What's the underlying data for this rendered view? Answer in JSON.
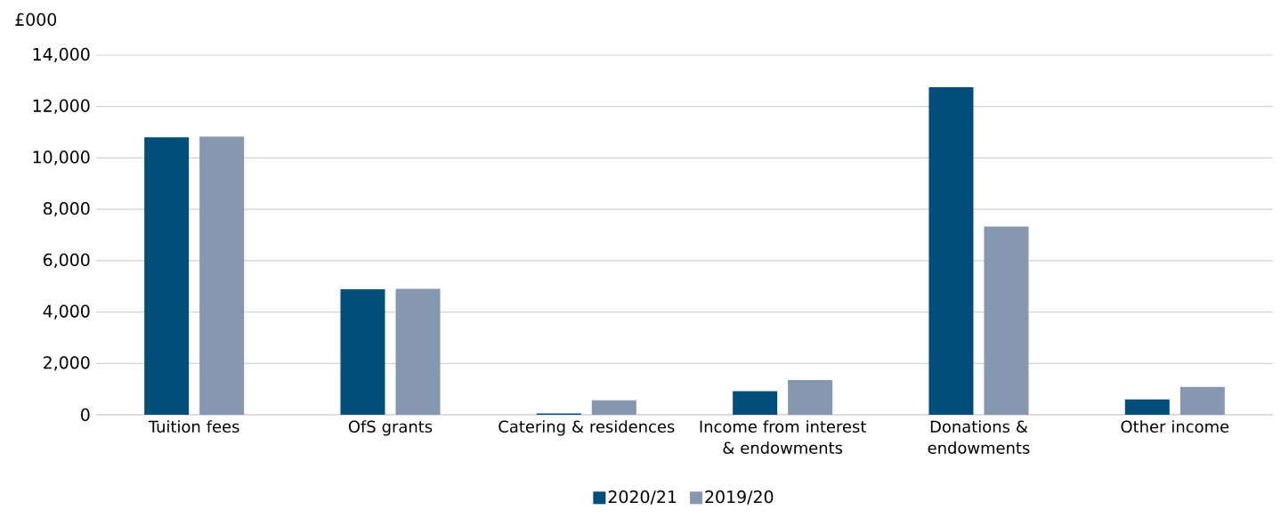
{
  "chart_data": {
    "type": "bar",
    "ylabel": "£000",
    "categories": [
      "Tuition fees",
      "OfS grants",
      "Catering & residences",
      "Income from interest & endowments",
      "Donations & endowments",
      "Other income"
    ],
    "series": [
      {
        "name": "2020/21",
        "color": "#014e7b",
        "values": [
          10800,
          4890,
          50,
          920,
          12750,
          600
        ]
      },
      {
        "name": "2019/20",
        "color": "#8697b0",
        "values": [
          10830,
          4900,
          560,
          1350,
          7330,
          1080
        ]
      }
    ],
    "ylim": [
      0,
      14000
    ],
    "yticks": [
      0,
      {
        "value": 2000,
        "label": "2,000"
      },
      {
        "value": 4000,
        "label": "4,000"
      },
      {
        "value": 6000,
        "label": "6,000"
      },
      {
        "value": 8000,
        "label": "8,000"
      },
      {
        "value": 10000,
        "label": "10,000"
      },
      {
        "value": 12000,
        "label": "12,000"
      },
      {
        "value": 14000,
        "label": "14,000"
      }
    ],
    "grid": "y",
    "legend": "bottom"
  }
}
